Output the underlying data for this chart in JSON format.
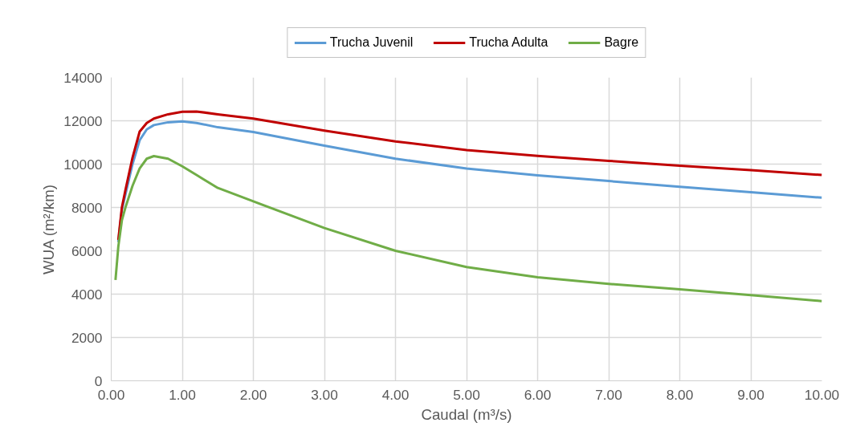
{
  "chart_data": {
    "type": "line",
    "xlabel": "Caudal (m³/s)",
    "ylabel": "WUA (m²/km)",
    "x": [
      0.06,
      0.1,
      0.15,
      0.2,
      0.3,
      0.4,
      0.5,
      0.6,
      0.8,
      1.0,
      1.2,
      1.5,
      2,
      3,
      4,
      5,
      6,
      7,
      8,
      9,
      10
    ],
    "series": [
      {
        "name": "Trucha Juvenil",
        "color": "#5b9bd5",
        "values": [
          null,
          6400,
          7900,
          8600,
          10000,
          11100,
          11600,
          11800,
          11930,
          11970,
          11900,
          11700,
          11480,
          10850,
          10250,
          9800,
          9480,
          9220,
          8950,
          8700,
          8450
        ]
      },
      {
        "name": "Trucha Adulta",
        "color": "#c00000",
        "values": [
          null,
          6500,
          8000,
          8800,
          10300,
          11500,
          11900,
          12100,
          12300,
          12420,
          12430,
          12300,
          12100,
          11550,
          11050,
          10650,
          10380,
          10150,
          9930,
          9720,
          9500
        ]
      },
      {
        "name": "Bagre",
        "color": "#70ad47",
        "values": [
          4650,
          6200,
          7400,
          8000,
          9000,
          9800,
          10250,
          10370,
          10250,
          9900,
          9500,
          8900,
          8280,
          7050,
          6000,
          5250,
          4780,
          4470,
          4220,
          3950,
          3680
        ]
      }
    ],
    "xlim": [
      0,
      10
    ],
    "ylim": [
      0,
      14000
    ],
    "xticks": [
      {
        "value": 0,
        "label": "0.00"
      },
      {
        "value": 1,
        "label": "1.00"
      },
      {
        "value": 2,
        "label": "2.00"
      },
      {
        "value": 3,
        "label": "3.00"
      },
      {
        "value": 4,
        "label": "4.00"
      },
      {
        "value": 5,
        "label": "5.00"
      },
      {
        "value": 6,
        "label": "6.00"
      },
      {
        "value": 7,
        "label": "7.00"
      },
      {
        "value": 8,
        "label": "8.00"
      },
      {
        "value": 9,
        "label": "9.00"
      },
      {
        "value": 10,
        "label": "10.00"
      }
    ],
    "yticks": [
      0,
      2000,
      4000,
      6000,
      8000,
      10000,
      12000,
      14000
    ],
    "grid": true,
    "legend": "top",
    "marker": "none",
    "line_style": "solid"
  }
}
